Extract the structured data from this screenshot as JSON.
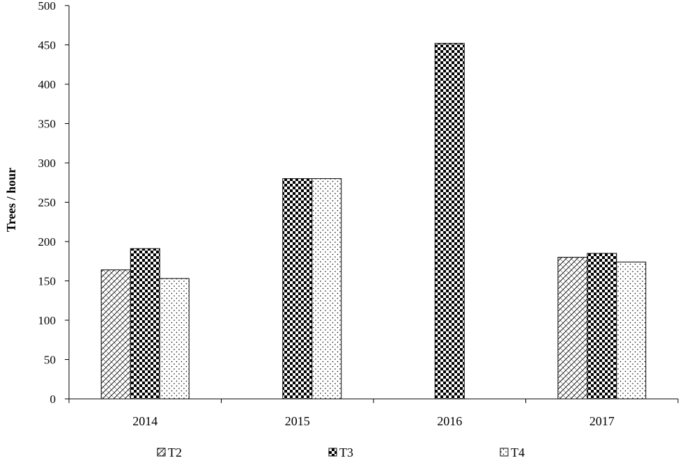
{
  "chart_data": {
    "type": "bar",
    "title": "",
    "xlabel": "",
    "ylabel": "Trees / hour",
    "categories": [
      "2014",
      "2015",
      "2016",
      "2017"
    ],
    "ylim": [
      0,
      500
    ],
    "yticks": [
      0,
      50,
      100,
      150,
      200,
      250,
      300,
      350,
      400,
      450,
      500
    ],
    "grid": false,
    "legend": "bottom",
    "series": [
      {
        "name": "T2",
        "pattern": "diagonal-hatch",
        "values": [
          164,
          null,
          null,
          180
        ]
      },
      {
        "name": "T3",
        "pattern": "checkerboard",
        "values": [
          191,
          280,
          452,
          185
        ]
      },
      {
        "name": "T4",
        "pattern": "dots",
        "values": [
          153,
          280,
          null,
          174
        ]
      }
    ]
  }
}
